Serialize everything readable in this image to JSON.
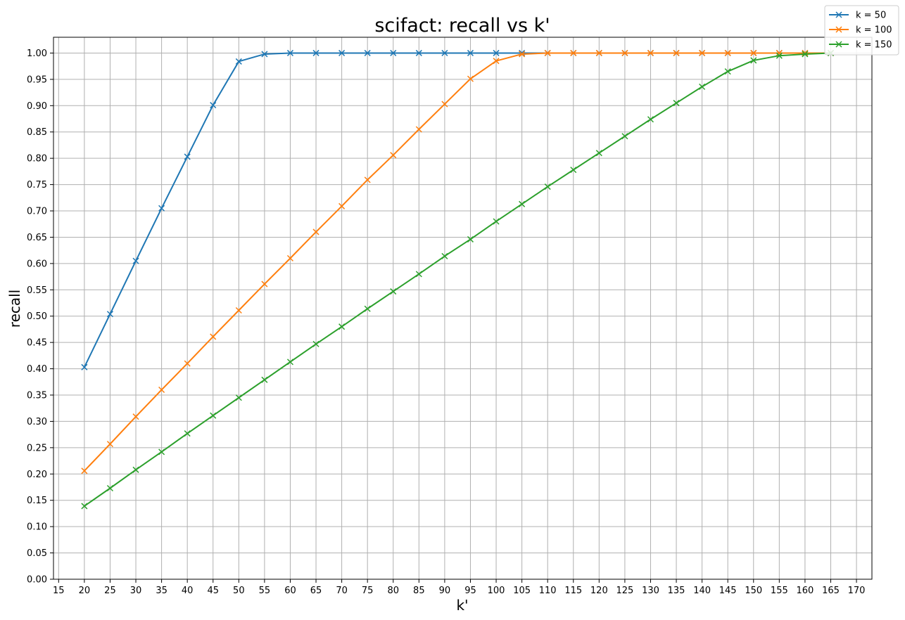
{
  "chart_data": {
    "type": "line",
    "title": "scifact: recall vs k'",
    "xlabel": "k'",
    "ylabel": "recall",
    "xlim": [
      14,
      173
    ],
    "ylim": [
      0.0,
      1.03
    ],
    "xticks": [
      15,
      20,
      25,
      30,
      35,
      40,
      45,
      50,
      55,
      60,
      65,
      70,
      75,
      80,
      85,
      90,
      95,
      100,
      105,
      110,
      115,
      120,
      125,
      130,
      135,
      140,
      145,
      150,
      155,
      160,
      165,
      170
    ],
    "yticks": [
      "0.00",
      "0.05",
      "0.10",
      "0.15",
      "0.20",
      "0.25",
      "0.30",
      "0.35",
      "0.40",
      "0.45",
      "0.50",
      "0.55",
      "0.60",
      "0.65",
      "0.70",
      "0.75",
      "0.80",
      "0.85",
      "0.90",
      "0.95",
      "1.00"
    ],
    "grid": true,
    "legend_position": "top-right",
    "marker": "x",
    "x": [
      20,
      25,
      30,
      35,
      40,
      45,
      50,
      55,
      60,
      65,
      70,
      75,
      80,
      85,
      90,
      95,
      100,
      105,
      110,
      115,
      120,
      125,
      130,
      135,
      140,
      145,
      150,
      155,
      160,
      165
    ],
    "series": [
      {
        "name": "k = 50",
        "color": "#1f77b4",
        "values": [
          0.403,
          0.504,
          0.605,
          0.705,
          0.803,
          0.901,
          0.984,
          0.998,
          1.0,
          1.0,
          1.0,
          1.0,
          1.0,
          1.0,
          1.0,
          1.0,
          1.0,
          1.0,
          1.0,
          1.0,
          1.0,
          1.0,
          1.0,
          1.0,
          1.0,
          1.0,
          1.0,
          1.0,
          1.0,
          1.0
        ]
      },
      {
        "name": "k = 100",
        "color": "#ff7f0e",
        "values": [
          0.206,
          0.257,
          0.309,
          0.36,
          0.41,
          0.461,
          0.511,
          0.561,
          0.61,
          0.66,
          0.709,
          0.759,
          0.806,
          0.855,
          0.903,
          0.951,
          0.985,
          0.998,
          1.0,
          1.0,
          1.0,
          1.0,
          1.0,
          1.0,
          1.0,
          1.0,
          1.0,
          1.0,
          1.0,
          1.0
        ]
      },
      {
        "name": "k = 150",
        "color": "#2ca02c",
        "values": [
          0.139,
          0.173,
          0.208,
          0.242,
          0.277,
          0.311,
          0.345,
          0.379,
          0.413,
          0.447,
          0.48,
          0.514,
          0.547,
          0.58,
          0.614,
          0.646,
          0.68,
          0.713,
          0.746,
          0.778,
          0.81,
          0.842,
          0.874,
          0.905,
          0.936,
          0.965,
          0.986,
          0.995,
          0.998,
          1.0
        ]
      }
    ]
  }
}
